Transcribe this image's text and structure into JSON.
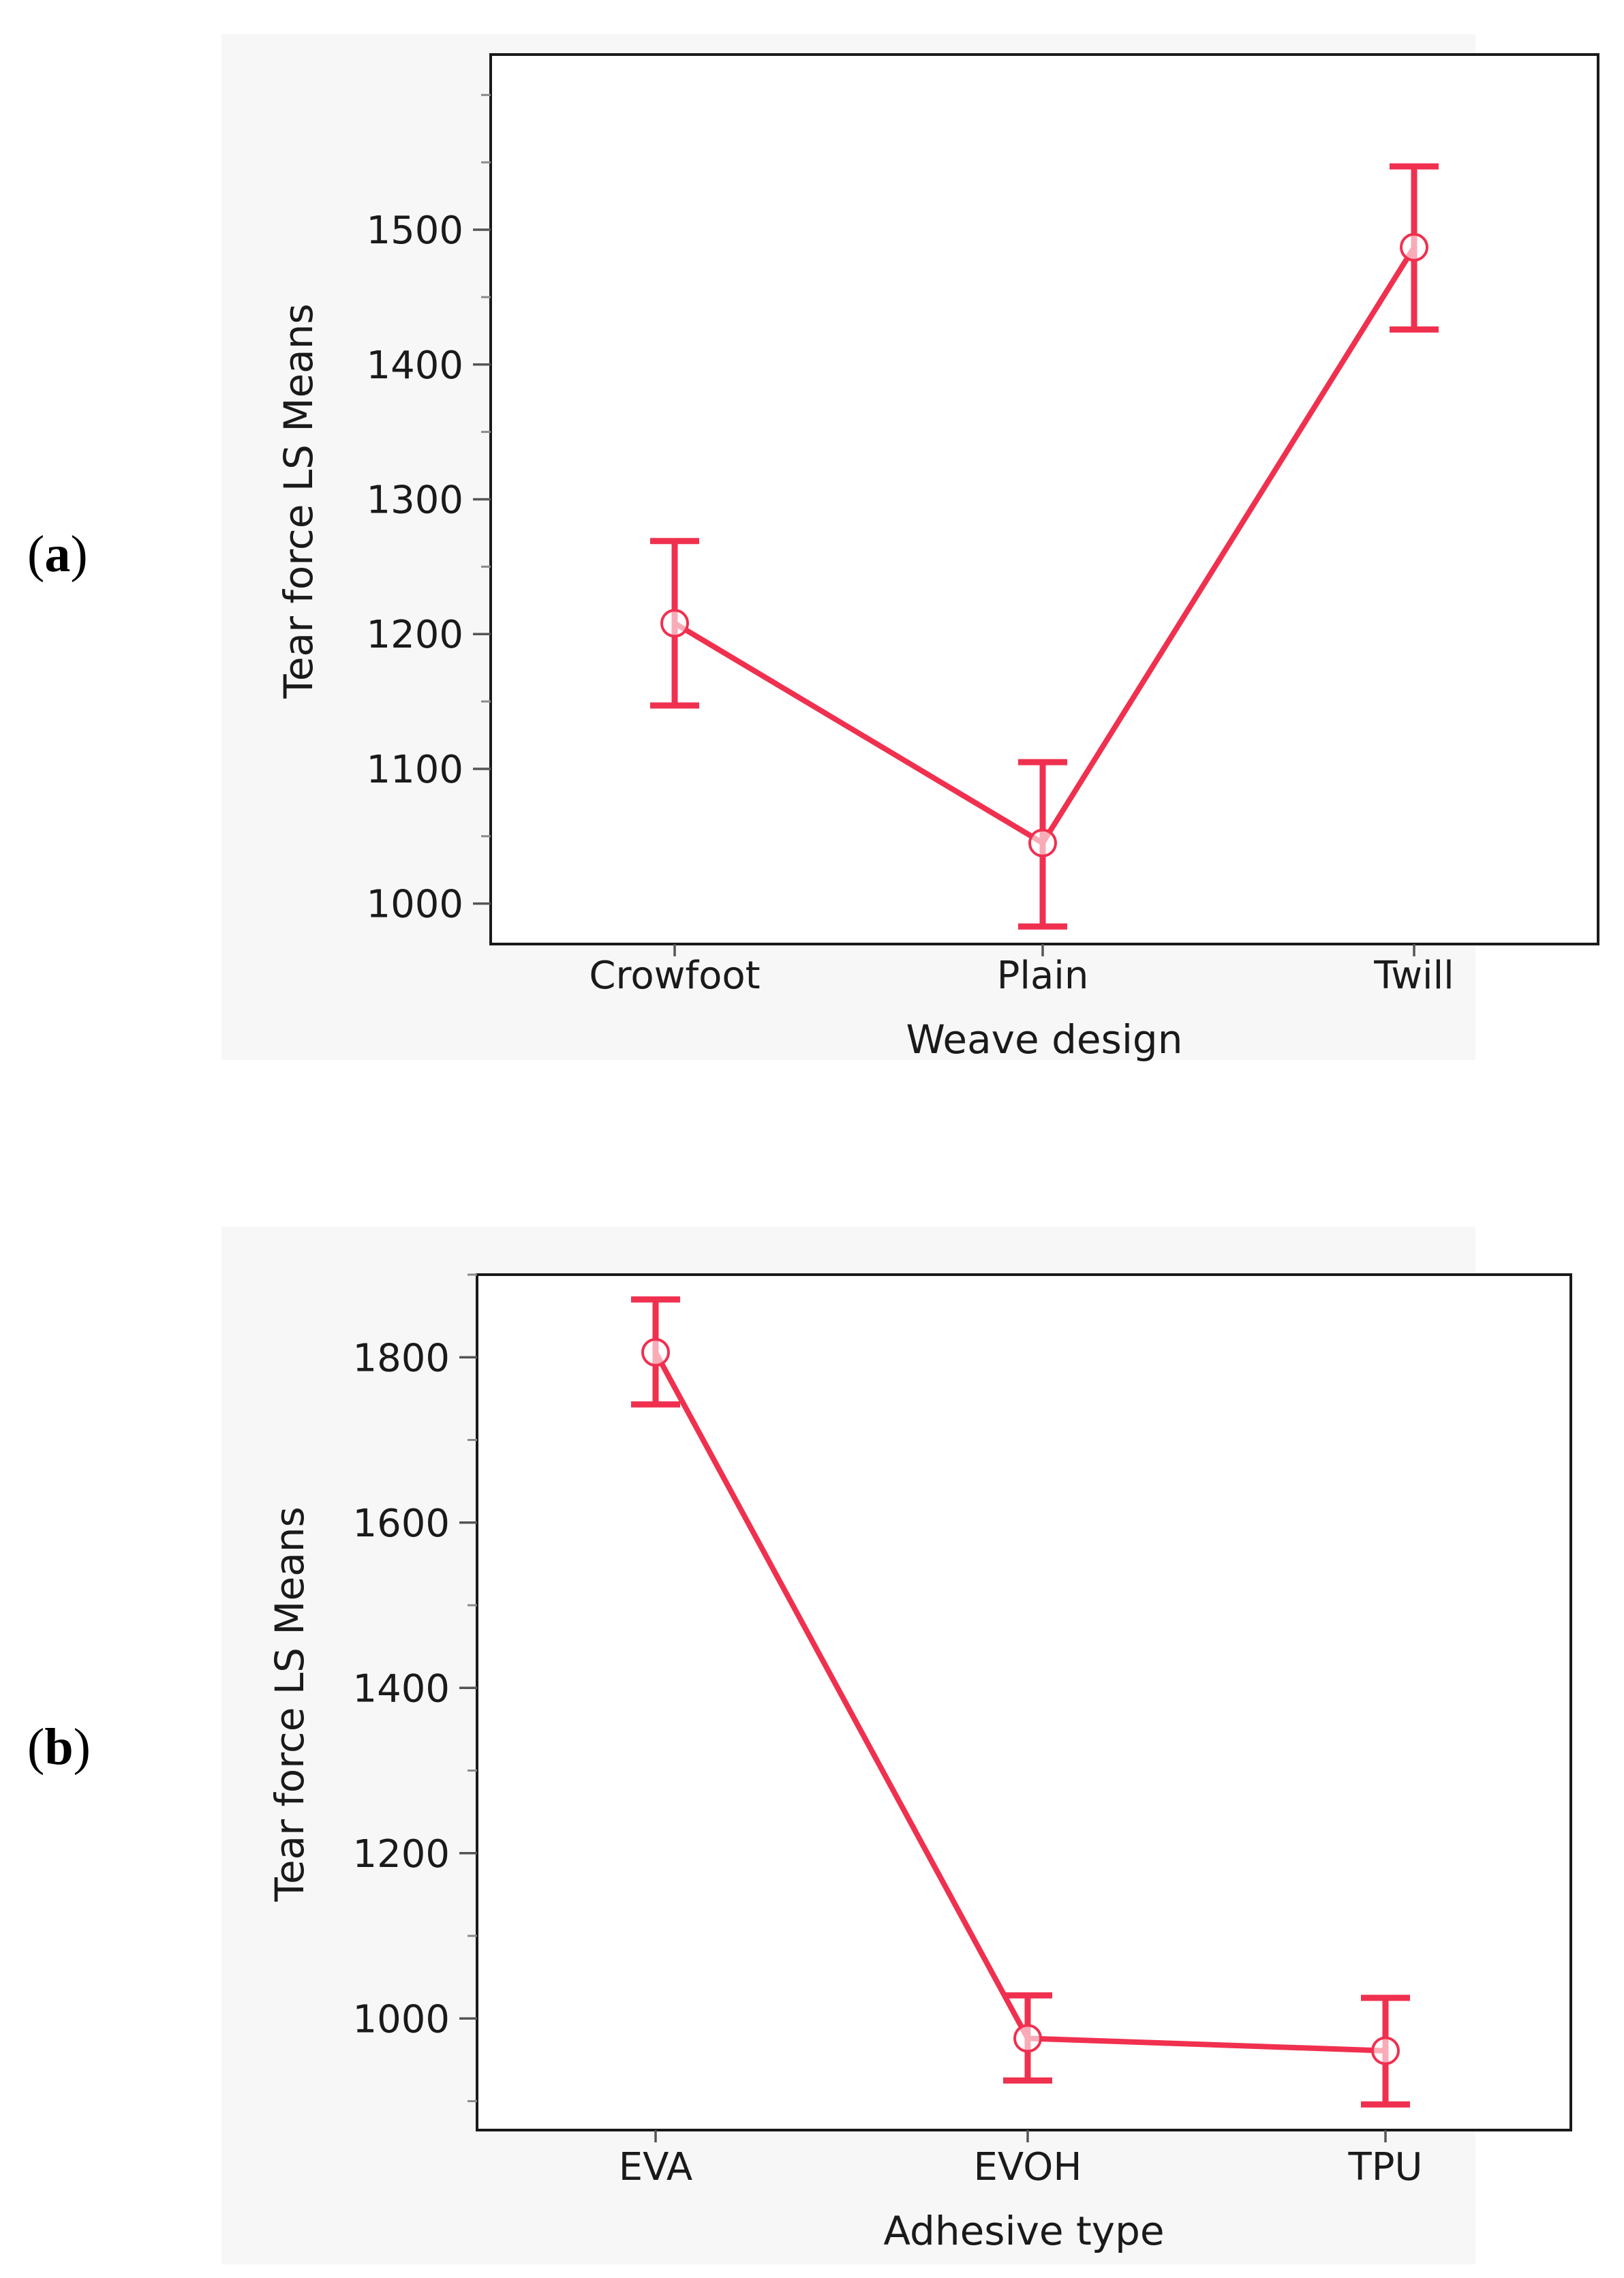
{
  "panels": [
    {
      "label": "a"
    },
    {
      "label": "b"
    }
  ],
  "colors": {
    "series": "#f0304f",
    "frame": "#1a1a1a",
    "background": "#f7f7f7",
    "plot_bg": "#ffffff"
  },
  "chart_data": [
    {
      "type": "line",
      "title": "",
      "xlabel": "Weave design",
      "ylabel": "Tear force LS Means",
      "categories": [
        "Crowfoot",
        "Plain",
        "Twill"
      ],
      "series": [
        {
          "values": [
            1208,
            1045,
            1487
          ],
          "err_low": [
            1147,
            983,
            1426
          ],
          "err_high": [
            1269,
            1105,
            1547
          ]
        }
      ],
      "ylim": [
        970,
        1630
      ],
      "yticks": [
        1000,
        1100,
        1200,
        1300,
        1400,
        1500
      ],
      "ytick_labels": [
        "1000",
        "1100",
        "1200",
        "1300",
        "1400",
        "1500"
      ],
      "minor_tick_step": 50,
      "grid": false,
      "legend": "none"
    },
    {
      "type": "line",
      "title": "",
      "xlabel": "Adhesive type",
      "ylabel": "Tear force LS Means",
      "categories": [
        "EVA",
        "EVOH",
        "TPU"
      ],
      "series": [
        {
          "values": [
            1806,
            976,
            961
          ],
          "err_low": [
            1743,
            925,
            896
          ],
          "err_high": [
            1870,
            1028,
            1025
          ]
        }
      ],
      "ylim": [
        865,
        1900
      ],
      "yticks": [
        1000,
        1200,
        1400,
        1600,
        1800
      ],
      "ytick_labels": [
        "1000",
        "1200",
        "1400",
        "1600",
        "1800"
      ],
      "minor_tick_step": 100,
      "grid": false,
      "legend": "none"
    }
  ]
}
